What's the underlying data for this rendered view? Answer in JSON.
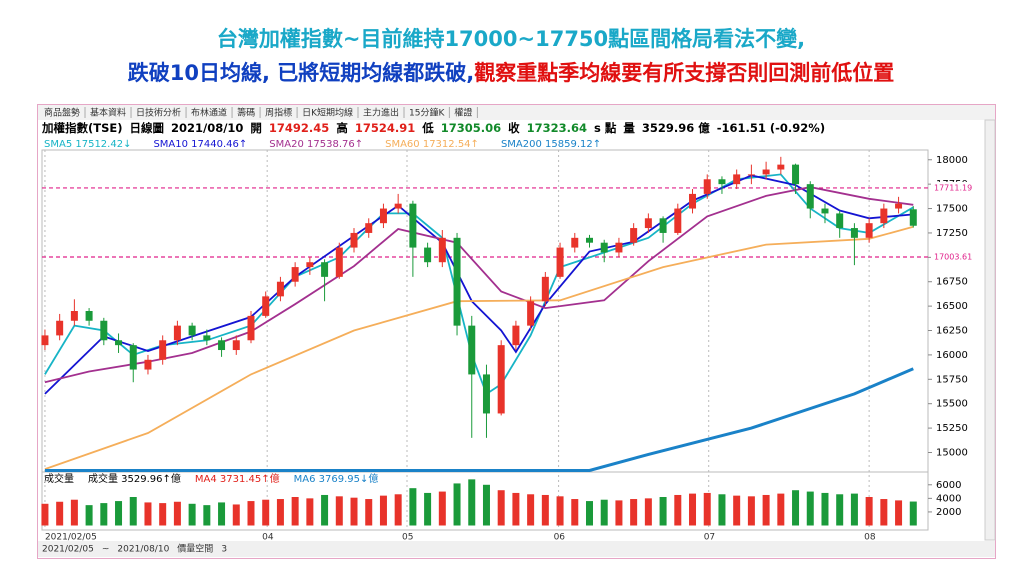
{
  "headline": {
    "line1": "台灣加權指數~目前維持17000~17750點區間格局看法不變,",
    "line2_a": "跌破10日均線, 已將短期均線都跌破,",
    "line2_b": "觀察重點季均線要有所支撐否則回測前低位置"
  },
  "tabs": [
    "商品盤勢",
    "基本資料",
    "日技術分析",
    "布林通道",
    "籌碼",
    "周指標",
    "日K短期均線",
    "主力進出",
    "15分鐘K",
    "權證"
  ],
  "active_tab": 2,
  "info": [
    {
      "text": "加權指數(TSE)",
      "color": "#000"
    },
    {
      "text": "日線圖",
      "color": "#000"
    },
    {
      "text": "2021/08/10",
      "color": "#000"
    },
    {
      "text": "開",
      "color": "#000"
    },
    {
      "text": "17492.45",
      "color": "#e0201a"
    },
    {
      "text": "高",
      "color": "#000"
    },
    {
      "text": "17524.91",
      "color": "#e0201a"
    },
    {
      "text": "低",
      "color": "#000"
    },
    {
      "text": "17305.06",
      "color": "#128a2a"
    },
    {
      "text": "收",
      "color": "#000"
    },
    {
      "text": "17323.64",
      "color": "#128a2a"
    },
    {
      "text": "s 點",
      "color": "#000"
    },
    {
      "text": "量",
      "color": "#000"
    },
    {
      "text": "3529.96 億",
      "color": "#000"
    },
    {
      "text": "-161.51 (-0.92%)",
      "color": "#000"
    }
  ],
  "toolbar": [
    "2021/02/05",
    "~",
    "2021/08/10",
    "價量空間",
    "3"
  ],
  "chart_data": {
    "type": "candlestick",
    "up_color": "#e8332a",
    "down_color": "#1a9a3a",
    "xlim": [
      -0.2,
      60
    ],
    "ylim": [
      14800,
      18100
    ],
    "yticks": [
      15000,
      15250,
      15500,
      15750,
      16000,
      16250,
      16500,
      16750,
      17000,
      17250,
      17500,
      17750,
      18000
    ],
    "xticks": [
      {
        "value": 0,
        "label": "2021/02/05"
      },
      {
        "value": 15.1,
        "label": "04"
      },
      {
        "value": 24.6,
        "label": "05"
      },
      {
        "value": 34.9,
        "label": "06"
      },
      {
        "value": 45.1,
        "label": "07"
      },
      {
        "value": 56,
        "label": "08"
      }
    ],
    "hlines": [
      17711.19,
      17003.61
    ],
    "hline_color": "#e0208a",
    "ohlc": [
      [
        16100,
        16260,
        16050,
        16200
      ],
      [
        16200,
        16420,
        16150,
        16350
      ],
      [
        16350,
        16570,
        16300,
        16450
      ],
      [
        16450,
        16480,
        16300,
        16350
      ],
      [
        16350,
        16380,
        16100,
        16150
      ],
      [
        16150,
        16220,
        16020,
        16100
      ],
      [
        16100,
        16120,
        15720,
        15850
      ],
      [
        15850,
        16000,
        15800,
        15950
      ],
      [
        15950,
        16200,
        15900,
        16150
      ],
      [
        16150,
        16350,
        16100,
        16300
      ],
      [
        16300,
        16330,
        16150,
        16200
      ],
      [
        16200,
        16260,
        16100,
        16150
      ],
      [
        16150,
        16180,
        15980,
        16050
      ],
      [
        16050,
        16200,
        16000,
        16150
      ],
      [
        16150,
        16450,
        16120,
        16400
      ],
      [
        16400,
        16650,
        16380,
        16600
      ],
      [
        16600,
        16800,
        16550,
        16750
      ],
      [
        16750,
        16950,
        16700,
        16900
      ],
      [
        16900,
        17000,
        16820,
        16950
      ],
      [
        16950,
        16980,
        16550,
        16800
      ],
      [
        16800,
        17150,
        16780,
        17100
      ],
      [
        17100,
        17300,
        17050,
        17250
      ],
      [
        17250,
        17400,
        17200,
        17350
      ],
      [
        17350,
        17550,
        17300,
        17500
      ],
      [
        17500,
        17650,
        17450,
        17550
      ],
      [
        17550,
        17580,
        16800,
        17100
      ],
      [
        17100,
        17150,
        16900,
        16950
      ],
      [
        16950,
        17280,
        16900,
        17200
      ],
      [
        17200,
        17250,
        16200,
        16300
      ],
      [
        16300,
        16400,
        15150,
        15800
      ],
      [
        15800,
        15900,
        15150,
        15400
      ],
      [
        15400,
        16150,
        15380,
        16100
      ],
      [
        16100,
        16350,
        16050,
        16300
      ],
      [
        16300,
        16600,
        16250,
        16550
      ],
      [
        16550,
        16850,
        16500,
        16800
      ],
      [
        16800,
        17150,
        16780,
        17100
      ],
      [
        17100,
        17250,
        17050,
        17200
      ],
      [
        17200,
        17230,
        17100,
        17150
      ],
      [
        17150,
        17180,
        16950,
        17050
      ],
      [
        17050,
        17200,
        17000,
        17150
      ],
      [
        17150,
        17350,
        17120,
        17300
      ],
      [
        17300,
        17450,
        17250,
        17400
      ],
      [
        17400,
        17420,
        17150,
        17250
      ],
      [
        17250,
        17550,
        17230,
        17500
      ],
      [
        17500,
        17700,
        17450,
        17650
      ],
      [
        17650,
        17850,
        17600,
        17800
      ],
      [
        17800,
        17830,
        17650,
        17750
      ],
      [
        17750,
        17900,
        17700,
        17850
      ],
      [
        17850,
        17950,
        17750,
        17850
      ],
      [
        17850,
        17980,
        17800,
        17900
      ],
      [
        17900,
        18030,
        17850,
        17950
      ],
      [
        17950,
        17960,
        17650,
        17750
      ],
      [
        17750,
        17780,
        17400,
        17500
      ],
      [
        17500,
        17550,
        17350,
        17450
      ],
      [
        17450,
        17480,
        17200,
        17300
      ],
      [
        17300,
        17350,
        16920,
        17200
      ],
      [
        17200,
        17400,
        17150,
        17350
      ],
      [
        17350,
        17550,
        17300,
        17500
      ],
      [
        17500,
        17620,
        17450,
        17550
      ],
      [
        17492.45,
        17524.91,
        17305.06,
        17323.64
      ]
    ],
    "series": [
      {
        "name": "SMA5 17512.42↓",
        "color": "#17b4c6",
        "x": [
          0,
          2,
          4,
          6,
          8,
          11,
          14,
          17,
          20,
          23,
          25,
          27,
          29,
          30,
          31,
          33,
          35,
          38,
          41,
          44,
          47,
          50,
          52,
          54,
          56,
          59
        ],
        "values": [
          15800,
          16300,
          16250,
          16000,
          16100,
          16150,
          16300,
          16800,
          17000,
          17450,
          17450,
          17200,
          16000,
          15600,
          15700,
          16200,
          16900,
          17050,
          17200,
          17550,
          17800,
          17850,
          17500,
          17300,
          17250,
          17512.42
        ]
      },
      {
        "name": "SMA10 17440.46↑",
        "color": "#1414d2",
        "x": [
          0,
          4,
          7,
          10,
          14,
          17,
          21,
          24,
          27,
          29,
          31,
          32,
          34,
          37,
          40,
          44,
          48,
          51,
          54,
          56,
          59
        ],
        "values": [
          15600,
          16190,
          16040,
          16190,
          16390,
          16800,
          17220,
          17530,
          17150,
          16550,
          16250,
          16030,
          16520,
          17060,
          17160,
          17580,
          17840,
          17740,
          17480,
          17400,
          17440.46
        ]
      },
      {
        "name": "SMA20 17538.76↑",
        "color": "#a3308f",
        "x": [
          0,
          3,
          7,
          10,
          14,
          17,
          21,
          24,
          28,
          31,
          34,
          38,
          41,
          45,
          49,
          52,
          56,
          59
        ],
        "values": [
          15720,
          15830,
          15930,
          16020,
          16240,
          16520,
          16910,
          17290,
          17150,
          16650,
          16480,
          16560,
          16960,
          17420,
          17630,
          17720,
          17600,
          17538.76
        ]
      },
      {
        "name": "SMA60 17312.54↑",
        "color": "#f5ae5a",
        "x": [
          0,
          7,
          14,
          21,
          28,
          35,
          42,
          49,
          56,
          59
        ],
        "values": [
          14830,
          15200,
          15800,
          16250,
          16550,
          16560,
          16900,
          17130,
          17190,
          17312.54
        ]
      },
      {
        "name": "SMA200 15859.12↑",
        "color": "#1a82c8",
        "x": [
          0,
          37,
          41,
          48,
          55,
          59
        ],
        "values": [
          14815,
          14815,
          14980,
          15250,
          15600,
          15859.12
        ]
      }
    ],
    "volume": {
      "title": "成交量",
      "legend": [
        {
          "text": "成交量 3529.96↑億",
          "color": "#000"
        },
        {
          "text": "MA4 3731.45↑億",
          "color": "#e0201a"
        },
        {
          "text": "MA6 3769.95↓億",
          "color": "#1a82c8"
        }
      ],
      "ylim": [
        0,
        7000
      ],
      "yticks": [
        2000,
        4000,
        6000
      ],
      "values": [
        3200,
        3500,
        3800,
        3000,
        3300,
        3600,
        4200,
        3400,
        3300,
        3500,
        3200,
        3000,
        3400,
        3100,
        3600,
        3800,
        3900,
        4200,
        4000,
        4500,
        4300,
        4100,
        3900,
        4400,
        4600,
        5500,
        4800,
        5000,
        6200,
        6800,
        6000,
        5200,
        4800,
        4600,
        4500,
        4300,
        3900,
        3600,
        3800,
        3700,
        3900,
        4000,
        4200,
        4500,
        4700,
        4800,
        4600,
        4400,
        4300,
        4500,
        4700,
        5200,
        5000,
        4800,
        4600,
        4700,
        4200,
        3900,
        3700,
        3529.96
      ]
    }
  }
}
